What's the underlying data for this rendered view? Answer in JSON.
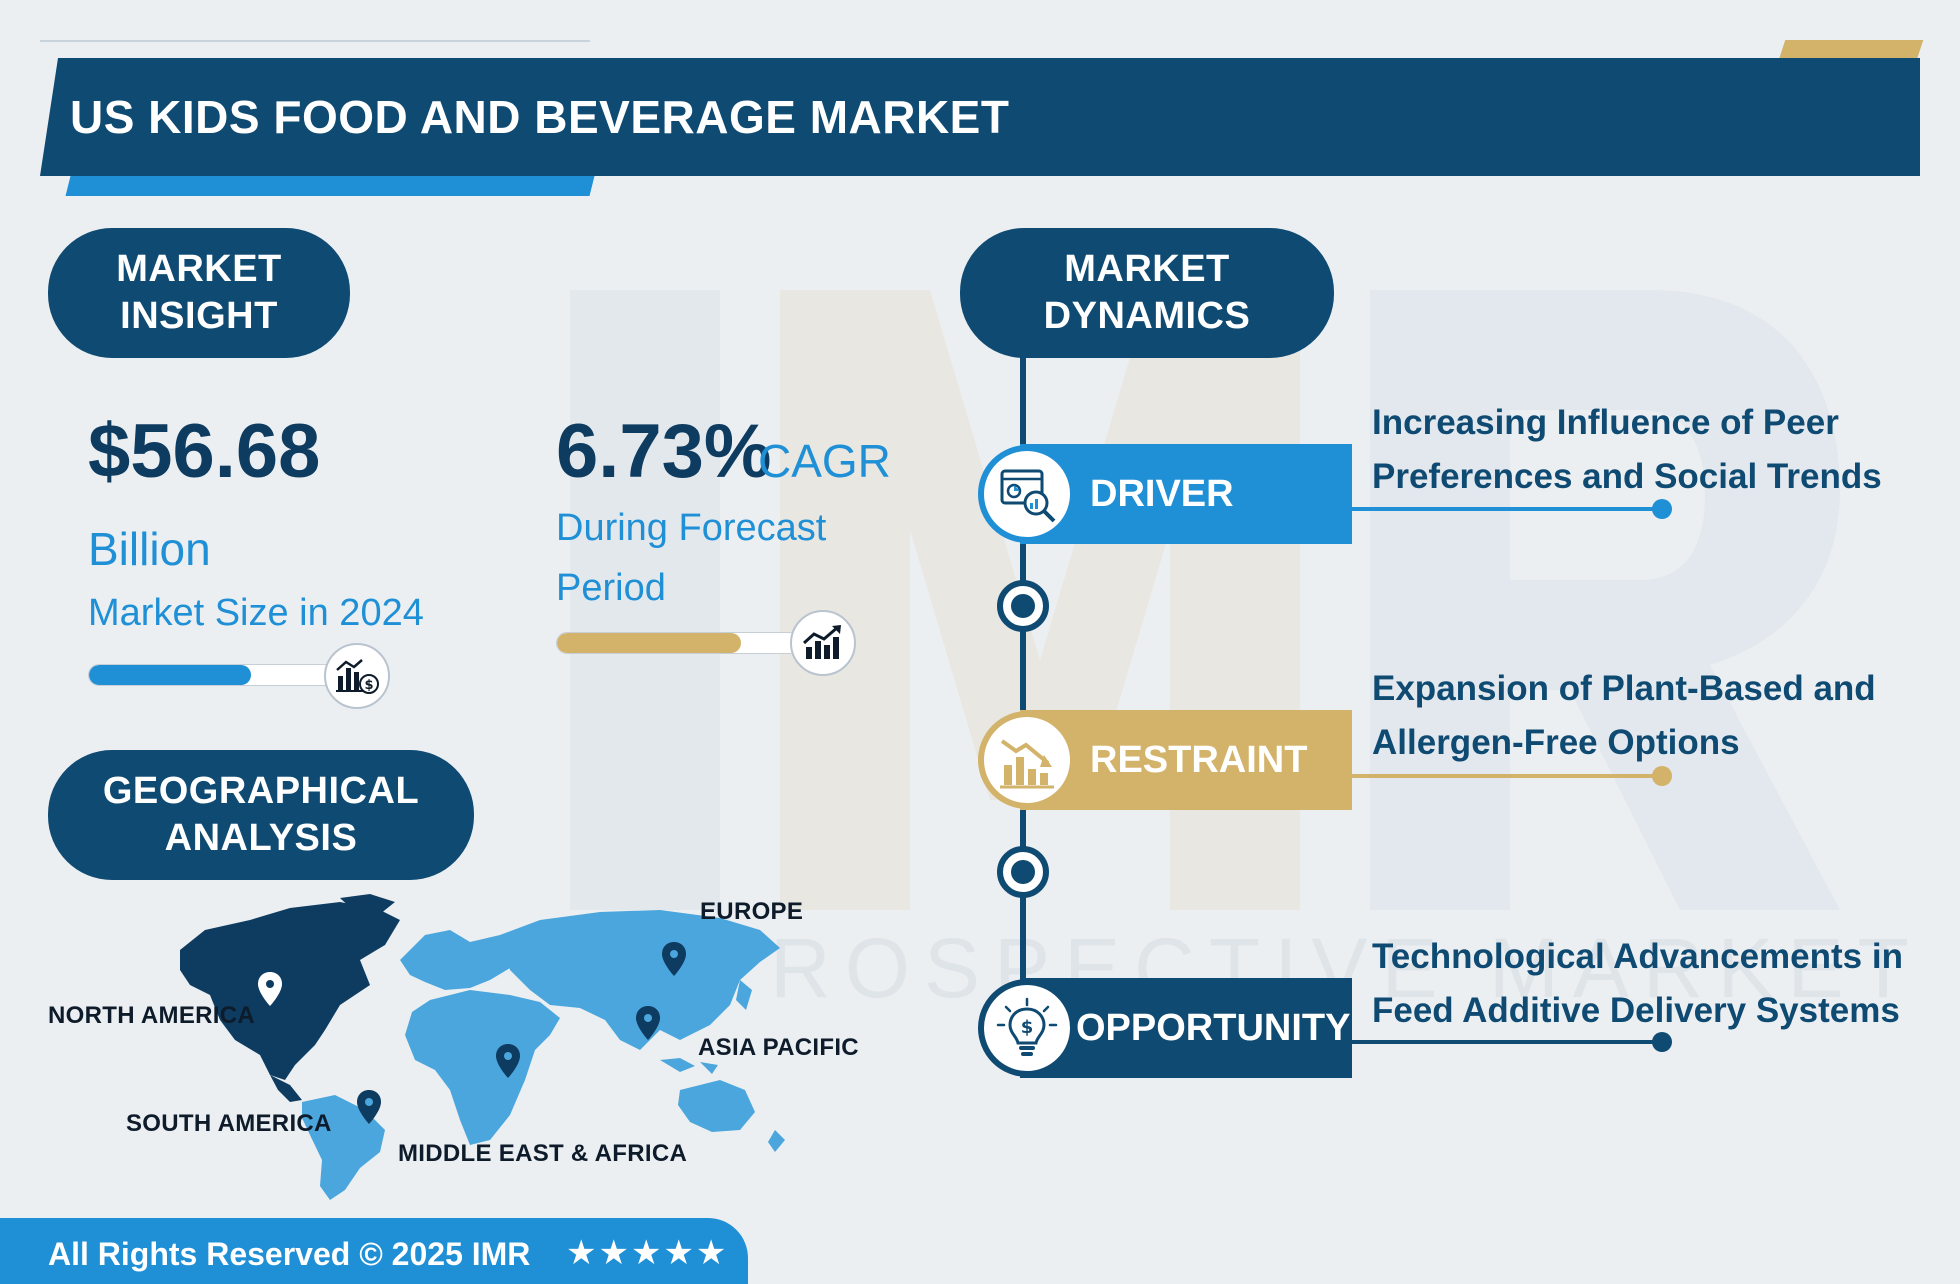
{
  "header": {
    "title": "US KIDS FOOD AND BEVERAGE MARKET"
  },
  "market_insight": {
    "heading_line1": "MARKET",
    "heading_line2": "INSIGHT",
    "size_value": "$56.68",
    "size_unit": "Billion",
    "size_label": "Market Size in 2024",
    "size_bar_fraction": 0.6,
    "cagr_value": "6.73%",
    "cagr_unit": "CAGR",
    "cagr_label": "During Forecast Period",
    "cagr_bar_fraction": 0.76,
    "colors": {
      "navy": "#0e4a72",
      "blue": "#1f8fd6",
      "gold": "#d3b26a"
    }
  },
  "geographical": {
    "heading_line1": "GEOGRAPHICAL",
    "heading_line2": "ANALYSIS",
    "regions": {
      "north_america": "NORTH AMERICA",
      "europe": "EUROPE",
      "asia_pacific": "ASIA PACIFIC",
      "south_america": "SOUTH AMERICA",
      "middle_east_africa": "MIDDLE EAST & AFRICA"
    },
    "highlighted_region": "NORTH AMERICA"
  },
  "dynamics": {
    "heading_line1": "MARKET",
    "heading_line2": "DYNAMICS",
    "driver": {
      "label": "DRIVER",
      "text": "Increasing Influence of Peer Preferences and Social Trends",
      "color": "#1f8fd6",
      "icon": "chart-magnifier-icon"
    },
    "restraint": {
      "label": "RESTRAINT",
      "text": "Expansion of Plant-Based and Allergen-Free Options",
      "color": "#d3b26a",
      "icon": "declining-chart-icon"
    },
    "opportunity": {
      "label": "OPPORTUNITY",
      "text": "Technological Advancements in Feed Additive Delivery Systems",
      "color": "#0e4a72",
      "icon": "lightbulb-dollar-icon"
    }
  },
  "watermark": {
    "letters": "IMR",
    "text": "PROSPECTIVE MARKET RESEARCH"
  },
  "footer": {
    "text": "All Rights Reserved © 2025 IMR",
    "stars": "★★★★★",
    "rating": 5
  }
}
